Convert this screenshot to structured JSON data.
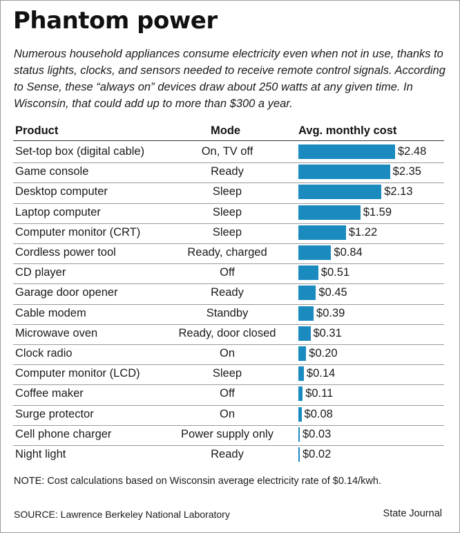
{
  "title": "Phantom power",
  "description": "Numerous household appliances consume electricity even when not in use, thanks to status lights, clocks, and sensors needed to receive remote control signals. According to Sense, these “always on” devices draw about 250 watts at any given time. In Wisconsin, that could add up to more than $300 a year.",
  "columns": {
    "product": "Product",
    "mode": "Mode",
    "cost": "Avg. monthly cost"
  },
  "chart_data": {
    "type": "bar",
    "orientation": "horizontal",
    "categories": [
      "Set-top box (digital cable)",
      "Game console",
      "Desktop computer",
      "Laptop computer",
      "Computer monitor (CRT)",
      "Cordless power tool",
      "CD player",
      "Garage door opener",
      "Cable modem",
      "Microwave oven",
      "Clock radio",
      "Computer monitor (LCD)",
      "Coffee maker",
      "Surge protector",
      "Cell phone charger",
      "Night light"
    ],
    "modes": [
      "On, TV off",
      "Ready",
      "Sleep",
      "Sleep",
      "Sleep",
      "Ready, charged",
      "Off",
      "Ready",
      "Standby",
      "Ready, door closed",
      "On",
      "Sleep",
      "Off",
      "On",
      "Power supply only",
      "Ready"
    ],
    "values": [
      2.48,
      2.35,
      2.13,
      1.59,
      1.22,
      0.84,
      0.51,
      0.45,
      0.39,
      0.31,
      0.2,
      0.14,
      0.11,
      0.08,
      0.03,
      0.02
    ],
    "value_labels": [
      "$2.48",
      "$2.35",
      "$2.13",
      "$1.59",
      "$1.22",
      "$0.84",
      "$0.51",
      "$0.45",
      "$0.39",
      "$0.31",
      "$0.20",
      "$0.14",
      "$0.11",
      "$0.08",
      "$0.03",
      "$0.02"
    ],
    "bar_color": "#1b8bbf",
    "xlim": [
      0,
      2.48
    ],
    "grid": false
  },
  "note": "NOTE: Cost calculations based on Wisconsin average electricity rate of $0.14/kwh.",
  "source": "SOURCE: Lawrence Berkeley National Laboratory",
  "credit": "State Journal"
}
